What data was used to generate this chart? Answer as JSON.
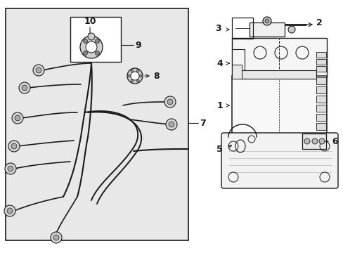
{
  "bg": "#ffffff",
  "panel_bg": "#e8e8e8",
  "line_color": "#1a1a1a",
  "white": "#ffffff",
  "figsize": [
    4.89,
    3.6
  ],
  "dpi": 100
}
